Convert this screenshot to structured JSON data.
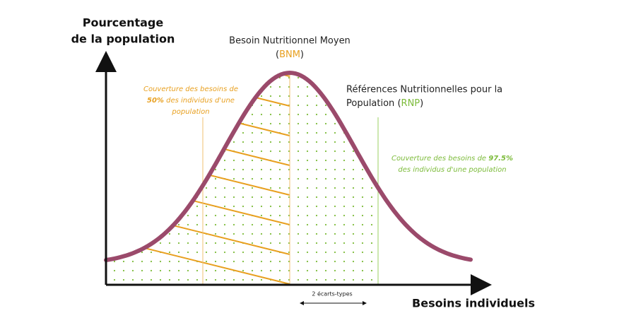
{
  "y_axis": {
    "line1": "Pourcentage",
    "line2": "de la population"
  },
  "x_axis": {
    "label": "Besoins individuels"
  },
  "bnm": {
    "label": "Besoin Nutritionnel Moyen",
    "open": "(",
    "abbr": "BNM",
    "close": ")"
  },
  "rnp": {
    "line1": "Références Nutritionnelles pour la",
    "line2_start": "Population",
    "open": " (",
    "abbr": "RNP",
    "close": ")"
  },
  "coverage_50": {
    "line1": "Couverture des besoins de",
    "bold": "50%",
    "line2_rest": " des individus d'une",
    "line3": "population"
  },
  "coverage_975": {
    "line1_start": "Couverture des besoins de ",
    "bold": "97.5%",
    "line2": "des individus d'une population"
  },
  "spread": {
    "label": "2 écarts-types"
  }
}
